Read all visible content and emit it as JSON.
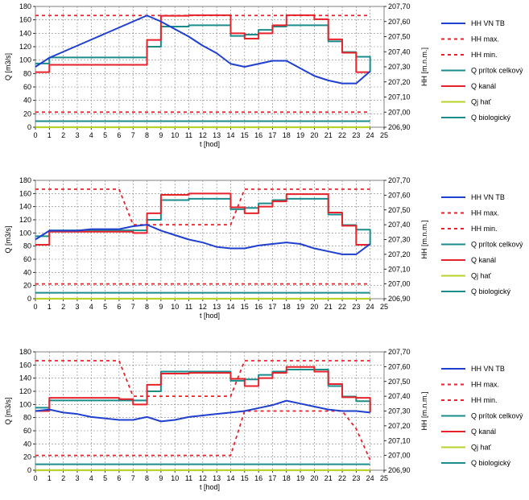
{
  "legend_labels": {
    "hh_vn_tb": "HH VN TB",
    "hh_max": "HH max.",
    "hh_min": "HH min.",
    "q_pritok": "Q prítok celkový",
    "q_kanal": "Q kanál",
    "qj_hat": "Qj hať",
    "q_bio": "Q biologický"
  },
  "colors": {
    "hh_vn_tb": "#1f3fd0",
    "hh_max": "#e8222a",
    "hh_min": "#e8222a",
    "q_pritok": "#1a8c8c",
    "q_kanal": "#e8222a",
    "qj_hat": "#b8d22a",
    "q_bio": "#1a8c8c",
    "grid": "#808080"
  },
  "chart_data": [
    {
      "type": "line",
      "xlabel": "t [hod]",
      "ylabel": "Q [m3/s]",
      "y2label": "HH [m.n.m.]",
      "x_ticks": [
        "0",
        "1",
        "2",
        "3",
        "4",
        "5",
        "6",
        "7",
        "8",
        "9",
        "10",
        "11",
        "12",
        "13",
        "14",
        "15",
        "16",
        "17",
        "18",
        "19",
        "20",
        "21",
        "22",
        "23",
        "24",
        "25"
      ],
      "y_ticks": [
        "0",
        "20",
        "40",
        "60",
        "80",
        "100",
        "120",
        "140",
        "160",
        "180"
      ],
      "y2_ticks": [
        "206,90",
        "207,00",
        "207,10",
        "207,20",
        "207,30",
        "207,40",
        "207,50",
        "207,60",
        "207,70"
      ],
      "xlim": [
        0,
        25
      ],
      "ylim": [
        0,
        180
      ],
      "y2lim": [
        206.9,
        207.7
      ],
      "legend": "right",
      "grid": true,
      "series": [
        {
          "key": "hh_vn_tb",
          "axis": "y2",
          "style": "line",
          "x": [
            0,
            1,
            2,
            3,
            4,
            5,
            6,
            7,
            8,
            9,
            10,
            11,
            12,
            13,
            14,
            15,
            16,
            17,
            18,
            19,
            20,
            21,
            22,
            23,
            24
          ],
          "y": [
            207.3,
            207.36,
            207.4,
            207.44,
            207.48,
            207.52,
            207.56,
            207.6,
            207.64,
            207.6,
            207.55,
            207.5,
            207.44,
            207.39,
            207.32,
            207.3,
            207.32,
            207.34,
            207.34,
            207.29,
            207.24,
            207.21,
            207.19,
            207.19,
            207.27
          ]
        },
        {
          "key": "hh_max",
          "axis": "y2",
          "style": "dashed",
          "x": [
            0,
            24
          ],
          "y": [
            207.64,
            207.64
          ]
        },
        {
          "key": "hh_min",
          "axis": "y2",
          "style": "dashed",
          "x": [
            0,
            24
          ],
          "y": [
            207.0,
            207.0
          ]
        },
        {
          "key": "q_pritok",
          "axis": "y",
          "style": "step",
          "x": [
            0,
            1,
            2,
            3,
            4,
            5,
            6,
            7,
            8,
            9,
            10,
            11,
            12,
            13,
            14,
            15,
            16,
            17,
            18,
            19,
            20,
            21,
            22,
            23,
            24
          ],
          "y": [
            95,
            104,
            104,
            104,
            104,
            104,
            104,
            104,
            120,
            150,
            150,
            152,
            152,
            152,
            136,
            138,
            145,
            150,
            152,
            152,
            152,
            128,
            112,
            105,
            82
          ]
        },
        {
          "key": "q_kanal",
          "axis": "y",
          "style": "step",
          "x": [
            0,
            1,
            2,
            3,
            4,
            5,
            6,
            7,
            8,
            9,
            10,
            11,
            12,
            13,
            14,
            15,
            16,
            17,
            18,
            19,
            20,
            21,
            22,
            23,
            24
          ],
          "y": [
            82,
            93,
            93,
            93,
            93,
            93,
            93,
            93,
            130,
            166,
            166,
            167,
            167,
            167,
            140,
            132,
            140,
            152,
            167,
            167,
            161,
            131,
            111,
            82,
            82
          ]
        },
        {
          "key": "qj_hat",
          "axis": "y",
          "style": "line",
          "x": [
            0,
            24
          ],
          "y": [
            0,
            0
          ]
        },
        {
          "key": "q_bio",
          "axis": "y",
          "style": "line",
          "x": [
            0,
            24
          ],
          "y": [
            9,
            9
          ]
        }
      ]
    },
    {
      "type": "line",
      "xlabel": "t [hod]",
      "ylabel": "Q [m3/s]",
      "y2label": "HH [m.n.m.]",
      "x_ticks": [
        "0",
        "1",
        "2",
        "3",
        "4",
        "5",
        "6",
        "7",
        "8",
        "9",
        "10",
        "11",
        "12",
        "13",
        "14",
        "15",
        "16",
        "17",
        "18",
        "19",
        "20",
        "21",
        "22",
        "23",
        "24",
        "25"
      ],
      "y_ticks": [
        "0",
        "20",
        "40",
        "60",
        "80",
        "100",
        "120",
        "140",
        "160",
        "180"
      ],
      "y2_ticks": [
        "206,90",
        "207,00",
        "207,10",
        "207,20",
        "207,30",
        "207,40",
        "207,50",
        "207,60",
        "207,70"
      ],
      "xlim": [
        0,
        25
      ],
      "ylim": [
        0,
        180
      ],
      "y2lim": [
        206.9,
        207.7
      ],
      "legend": "right",
      "grid": true,
      "series": [
        {
          "key": "hh_vn_tb",
          "axis": "y2",
          "style": "line",
          "x": [
            0,
            1,
            2,
            3,
            4,
            5,
            6,
            7,
            8,
            9,
            10,
            11,
            12,
            13,
            14,
            15,
            16,
            17,
            18,
            19,
            20,
            21,
            22,
            23,
            24
          ],
          "y": [
            207.3,
            207.36,
            207.36,
            207.36,
            207.37,
            207.37,
            207.37,
            207.39,
            207.4,
            207.36,
            207.33,
            207.3,
            207.28,
            207.25,
            207.24,
            207.24,
            207.26,
            207.27,
            207.28,
            207.27,
            207.24,
            207.22,
            207.2,
            207.2,
            207.27
          ]
        },
        {
          "key": "hh_max",
          "axis": "y2",
          "style": "dashed",
          "x": [
            0,
            6,
            7,
            8,
            9,
            10,
            11,
            12,
            13,
            14,
            15,
            24
          ],
          "y": [
            207.64,
            207.64,
            207.4,
            207.4,
            207.4,
            207.4,
            207.4,
            207.4,
            207.4,
            207.4,
            207.64,
            207.64
          ]
        },
        {
          "key": "hh_min",
          "axis": "y2",
          "style": "dashed",
          "x": [
            0,
            24
          ],
          "y": [
            207.0,
            207.0
          ]
        },
        {
          "key": "q_pritok",
          "axis": "y",
          "style": "step",
          "x": [
            0,
            1,
            2,
            3,
            4,
            5,
            6,
            7,
            8,
            9,
            10,
            11,
            12,
            13,
            14,
            15,
            16,
            17,
            18,
            19,
            20,
            21,
            22,
            23,
            24
          ],
          "y": [
            95,
            104,
            104,
            104,
            104,
            104,
            104,
            104,
            120,
            150,
            150,
            152,
            152,
            152,
            136,
            138,
            145,
            150,
            152,
            152,
            152,
            128,
            112,
            105,
            82
          ]
        },
        {
          "key": "q_kanal",
          "axis": "y",
          "style": "step",
          "x": [
            0,
            1,
            2,
            3,
            4,
            5,
            6,
            7,
            8,
            9,
            10,
            11,
            12,
            13,
            14,
            15,
            16,
            17,
            18,
            19,
            20,
            21,
            22,
            23,
            24
          ],
          "y": [
            82,
            102,
            102,
            102,
            102,
            102,
            102,
            100,
            130,
            158,
            158,
            160,
            160,
            160,
            139,
            130,
            140,
            148,
            159,
            159,
            159,
            131,
            111,
            82,
            82
          ]
        },
        {
          "key": "qj_hat",
          "axis": "y",
          "style": "line",
          "x": [
            0,
            24
          ],
          "y": [
            0,
            0
          ]
        },
        {
          "key": "q_bio",
          "axis": "y",
          "style": "line",
          "x": [
            0,
            24
          ],
          "y": [
            9,
            9
          ]
        }
      ]
    },
    {
      "type": "line",
      "xlabel": "t [hod]",
      "ylabel": "Q [m3/s]",
      "y2label": "HH [m.n.m.]",
      "x_ticks": [
        "0",
        "1",
        "2",
        "3",
        "4",
        "5",
        "6",
        "7",
        "8",
        "9",
        "10",
        "11",
        "12",
        "13",
        "14",
        "15",
        "16",
        "17",
        "18",
        "19",
        "20",
        "21",
        "22",
        "23",
        "24",
        "25"
      ],
      "y_ticks": [
        "0",
        "20",
        "40",
        "60",
        "80",
        "100",
        "120",
        "140",
        "160",
        "180"
      ],
      "y2_ticks": [
        "206,90",
        "207,00",
        "207,10",
        "207,20",
        "207,30",
        "207,40",
        "207,50",
        "207,60",
        "207,70"
      ],
      "xlim": [
        0,
        25
      ],
      "ylim": [
        0,
        180
      ],
      "y2lim": [
        206.9,
        207.7
      ],
      "legend": "right",
      "grid": true,
      "series": [
        {
          "key": "hh_vn_tb",
          "axis": "y2",
          "style": "line",
          "x": [
            0,
            1,
            2,
            3,
            4,
            5,
            6,
            7,
            8,
            9,
            10,
            11,
            12,
            13,
            14,
            15,
            16,
            17,
            18,
            19,
            20,
            21,
            22,
            23,
            24
          ],
          "y": [
            207.3,
            207.31,
            207.29,
            207.28,
            207.26,
            207.25,
            207.24,
            207.24,
            207.26,
            207.23,
            207.24,
            207.26,
            207.27,
            207.28,
            207.29,
            207.3,
            207.32,
            207.34,
            207.37,
            207.35,
            207.33,
            207.31,
            207.3,
            207.3,
            207.29
          ]
        },
        {
          "key": "hh_max",
          "axis": "y2",
          "style": "dashed",
          "x": [
            0,
            6,
            7,
            8,
            9,
            10,
            11,
            12,
            13,
            14,
            15,
            24
          ],
          "y": [
            207.64,
            207.64,
            207.4,
            207.4,
            207.4,
            207.4,
            207.4,
            207.4,
            207.4,
            207.4,
            207.64,
            207.64
          ]
        },
        {
          "key": "hh_min",
          "axis": "y2",
          "style": "dashed",
          "x": [
            0,
            14,
            15,
            16,
            17,
            18,
            19,
            20,
            21,
            22,
            23,
            24
          ],
          "y": [
            207.0,
            207.0,
            207.3,
            207.3,
            207.3,
            207.3,
            207.3,
            207.3,
            207.3,
            207.3,
            207.18,
            206.97
          ]
        },
        {
          "key": "q_pritok",
          "axis": "y",
          "style": "step",
          "x": [
            0,
            1,
            2,
            3,
            4,
            5,
            6,
            7,
            8,
            9,
            10,
            11,
            12,
            13,
            14,
            15,
            16,
            17,
            18,
            19,
            20,
            21,
            22,
            23,
            24
          ],
          "y": [
            95,
            106,
            106,
            106,
            106,
            106,
            106,
            106,
            120,
            150,
            150,
            150,
            150,
            150,
            136,
            138,
            145,
            150,
            153,
            153,
            153,
            128,
            112,
            105,
            88
          ]
        },
        {
          "key": "q_kanal",
          "axis": "y",
          "style": "step",
          "x": [
            0,
            1,
            2,
            3,
            4,
            5,
            6,
            7,
            8,
            9,
            10,
            11,
            12,
            13,
            14,
            15,
            16,
            17,
            18,
            19,
            20,
            21,
            22,
            23,
            24
          ],
          "y": [
            90,
            110,
            110,
            110,
            110,
            110,
            108,
            100,
            130,
            147,
            147,
            148,
            148,
            148,
            139,
            128,
            140,
            148,
            157,
            157,
            150,
            131,
            111,
            110,
            88
          ]
        },
        {
          "key": "qj_hat",
          "axis": "y",
          "style": "line",
          "x": [
            0,
            24
          ],
          "y": [
            0,
            0
          ]
        },
        {
          "key": "q_bio",
          "axis": "y",
          "style": "line",
          "x": [
            0,
            24
          ],
          "y": [
            9,
            9
          ]
        }
      ]
    }
  ]
}
